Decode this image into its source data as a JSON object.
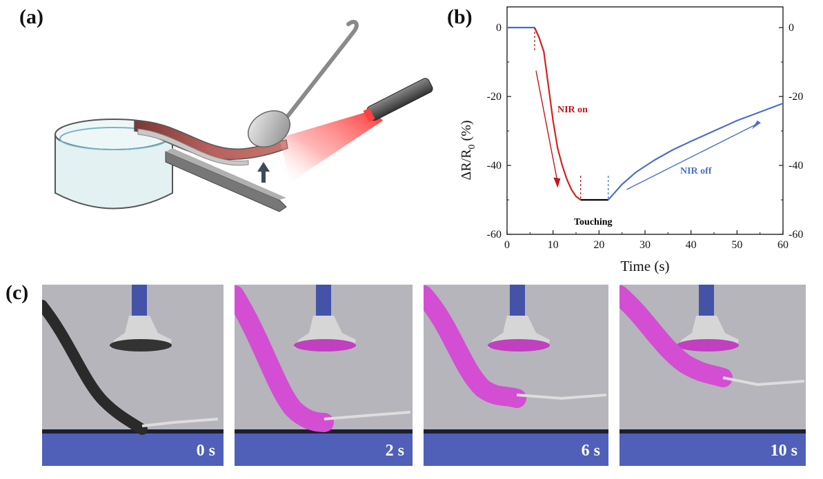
{
  "panels": {
    "a": "(a)",
    "b": "(b)",
    "c": "(c)"
  },
  "chart_data": {
    "type": "line",
    "title": "",
    "xlabel": "Time (s)",
    "ylabel_main": "ΔR/R",
    "ylabel_sub": "0",
    "ylabel_tail": " (%)",
    "xlim": [
      0,
      60
    ],
    "ylim": [
      -60,
      0
    ],
    "x_ticks": [
      0,
      10,
      20,
      30,
      40,
      50,
      60
    ],
    "y_ticks": [
      0,
      -20,
      -40,
      -60
    ],
    "x_tick_labels": [
      "0",
      "10",
      "20",
      "30",
      "40",
      "50",
      "60"
    ],
    "y_tick_labels": [
      "0",
      "-20",
      "-40",
      "-60"
    ],
    "series": [
      {
        "color": "#3b6fd6",
        "x": [
          0,
          6
        ],
        "y": [
          0,
          0
        ]
      },
      {
        "color": "#d42020",
        "x": [
          6,
          7,
          8,
          9,
          10,
          11,
          12,
          13,
          14,
          15,
          16
        ],
        "y": [
          0,
          -3,
          -7,
          -17,
          -27,
          -35,
          -40,
          -44,
          -47,
          -49,
          -50
        ]
      },
      {
        "color": "#000000",
        "x": [
          16,
          18,
          20,
          22
        ],
        "y": [
          -50,
          -50,
          -50,
          -50
        ]
      },
      {
        "color": "#4a6ec8",
        "x": [
          22,
          25,
          28,
          32,
          36,
          40,
          45,
          50,
          55,
          60
        ],
        "y": [
          -50,
          -45.5,
          -42,
          -38.5,
          -35.5,
          -33,
          -30,
          -27,
          -24.5,
          -22
        ]
      }
    ],
    "annotations": {
      "nir_on": "NIR on",
      "nir_off": "NIR off",
      "touching": "Touching"
    },
    "markers_x": [
      6,
      16,
      22
    ],
    "colors": {
      "nir_on": "#c0161c",
      "nir_off": "#4a6ec8",
      "touching": "#000000"
    }
  },
  "photos": [
    {
      "time": "0 s"
    },
    {
      "time": "2 s"
    },
    {
      "time": "6 s"
    },
    {
      "time": "10 s"
    }
  ]
}
